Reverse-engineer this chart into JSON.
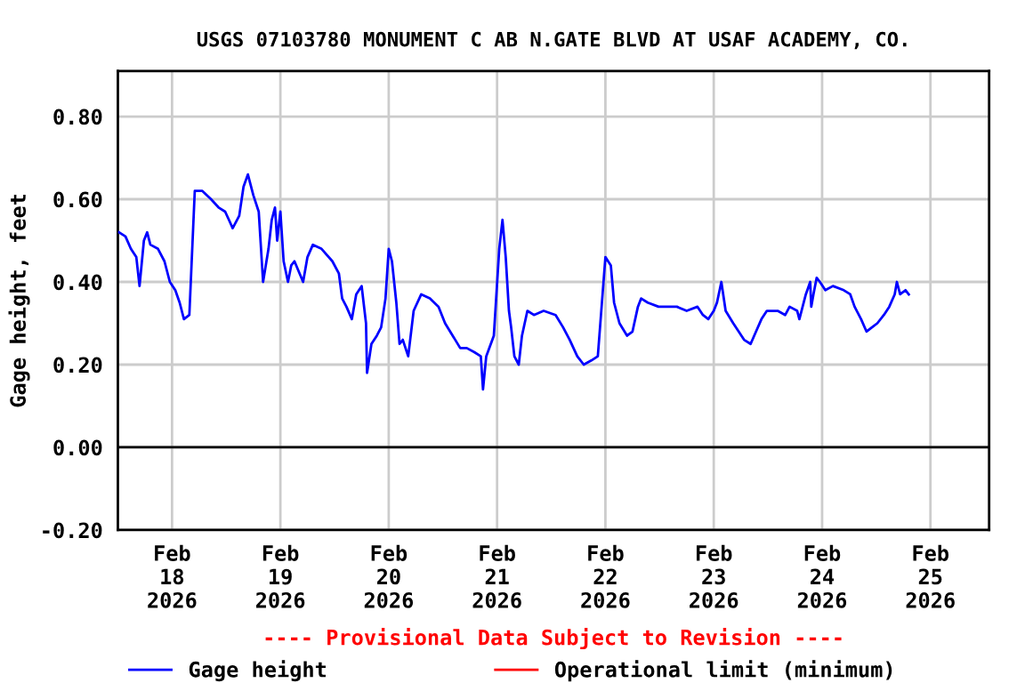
{
  "chart_data": {
    "type": "line",
    "title": "USGS 07103780 MONUMENT C AB N.GATE BLVD AT USAF ACADEMY, CO.",
    "ylabel": "Gage height, feet",
    "xlim": [
      "2026-02-17T12:00",
      "2026-02-25T13:00"
    ],
    "ylim": [
      -0.2,
      0.91
    ],
    "xticks": [
      {
        "value": "2026-02-18",
        "label": "Feb\n18\n2026"
      },
      {
        "value": "2026-02-19",
        "label": "Feb\n19\n2026"
      },
      {
        "value": "2026-02-20",
        "label": "Feb\n20\n2026"
      },
      {
        "value": "2026-02-21",
        "label": "Feb\n21\n2026"
      },
      {
        "value": "2026-02-22",
        "label": "Feb\n22\n2026"
      },
      {
        "value": "2026-02-23",
        "label": "Feb\n23\n2026"
      },
      {
        "value": "2026-02-24",
        "label": "Feb\n24\n2026"
      },
      {
        "value": "2026-02-25",
        "label": "Feb\n25\n2026"
      }
    ],
    "yticks": [
      {
        "value": -0.2,
        "label": "-0.20"
      },
      {
        "value": 0,
        "label": "0.00"
      },
      {
        "value": 0.2,
        "label": "0.20"
      },
      {
        "value": 0.4,
        "label": "0.40"
      },
      {
        "value": 0.6,
        "label": "0.60"
      },
      {
        "value": 0.8,
        "label": "0.80"
      }
    ],
    "grid": true,
    "legend": "bottom",
    "line_style": "solid",
    "marker": "none",
    "ref_lines": [
      {
        "axis": "y",
        "value": 0,
        "color": "#000000"
      }
    ],
    "annotations": [
      "---- Provisional Data Subject to Revision ----"
    ],
    "series": [
      {
        "name": "Gage height",
        "color": "#0000ff",
        "x": [
          "2026-02-17T12:14",
          "2026-02-17T13:41",
          "2026-02-17T14:53",
          "2026-02-17T16:05",
          "2026-02-17T16:48",
          "2026-02-17T17:46",
          "2026-02-17T18:29",
          "2026-02-17T19:12",
          "2026-02-17T20:53",
          "2026-02-17T22:19",
          "2026-02-17T23:31",
          "2026-02-18T00:43",
          "2026-02-18T01:41",
          "2026-02-18T02:38",
          "2026-02-18T03:50",
          "2026-02-18T05:02",
          "2026-02-18T06:43",
          "2026-02-18T08:38",
          "2026-02-18T10:19",
          "2026-02-18T11:46",
          "2026-02-18T13:26",
          "2026-02-18T14:53",
          "2026-02-18T15:50",
          "2026-02-18T16:48",
          "2026-02-18T18:00",
          "2026-02-18T19:12",
          "2026-02-18T20:10",
          "2026-02-18T21:22",
          "2026-02-18T22:05",
          "2026-02-18T22:48",
          "2026-02-18T23:17",
          "2026-02-19T00:00",
          "2026-02-19T00:43",
          "2026-02-19T01:41",
          "2026-02-19T02:24",
          "2026-02-19T03:07",
          "2026-02-19T05:02",
          "2026-02-19T06:00",
          "2026-02-19T07:12",
          "2026-02-19T09:07",
          "2026-02-19T11:31",
          "2026-02-19T12:58",
          "2026-02-19T13:41",
          "2026-02-19T14:38",
          "2026-02-19T15:50",
          "2026-02-19T16:48",
          "2026-02-19T18:00",
          "2026-02-19T18:58",
          "2026-02-19T19:12",
          "2026-02-19T20:10",
          "2026-02-19T21:22",
          "2026-02-19T22:19",
          "2026-02-19T23:17",
          "2026-02-20T00:00",
          "2026-02-20T00:43",
          "2026-02-20T01:41",
          "2026-02-20T02:24",
          "2026-02-20T03:07",
          "2026-02-20T04:19",
          "2026-02-20T05:31",
          "2026-02-20T07:12",
          "2026-02-20T09:07",
          "2026-02-20T11:02",
          "2026-02-20T12:29",
          "2026-02-20T14:10",
          "2026-02-20T15:50",
          "2026-02-20T17:17",
          "2026-02-20T18:58",
          "2026-02-20T20:24",
          "2026-02-20T20:53",
          "2026-02-20T21:36",
          "2026-02-20T23:17",
          "2026-02-21T00:29",
          "2026-02-21T01:12",
          "2026-02-21T01:55",
          "2026-02-21T02:38",
          "2026-02-21T03:07",
          "2026-02-21T03:50",
          "2026-02-21T04:48",
          "2026-02-21T05:31",
          "2026-02-21T06:43",
          "2026-02-21T08:10",
          "2026-02-21T10:19",
          "2026-02-21T12:58",
          "2026-02-21T14:38",
          "2026-02-21T16:05",
          "2026-02-21T17:46",
          "2026-02-21T19:12",
          "2026-02-21T20:53",
          "2026-02-21T22:19",
          "2026-02-22T00:00",
          "2026-02-22T01:12",
          "2026-02-22T01:55",
          "2026-02-22T03:07",
          "2026-02-22T04:48",
          "2026-02-22T06:00",
          "2026-02-22T07:12",
          "2026-02-22T07:55",
          "2026-02-22T09:22",
          "2026-02-22T11:46",
          "2026-02-22T15:50",
          "2026-02-22T18:00",
          "2026-02-22T20:24",
          "2026-02-22T21:36",
          "2026-02-22T22:48",
          "2026-02-23T00:00",
          "2026-02-23T00:43",
          "2026-02-23T01:41",
          "2026-02-23T02:38",
          "2026-02-23T04:19",
          "2026-02-23T05:31",
          "2026-02-23T06:43",
          "2026-02-23T08:10",
          "2026-02-23T09:22",
          "2026-02-23T10:34",
          "2026-02-23T11:46",
          "2026-02-23T14:10",
          "2026-02-23T15:50",
          "2026-02-23T16:48",
          "2026-02-23T18:29",
          "2026-02-23T18:58",
          "2026-02-23T19:41",
          "2026-02-23T20:24",
          "2026-02-23T21:22",
          "2026-02-23T21:36",
          "2026-02-23T22:05",
          "2026-02-23T22:48",
          "2026-02-23T23:31",
          "2026-02-24T00:43",
          "2026-02-24T02:24",
          "2026-02-24T04:48",
          "2026-02-24T06:14",
          "2026-02-24T07:12",
          "2026-02-24T08:38",
          "2026-02-24T09:50",
          "2026-02-24T11:02",
          "2026-02-24T12:14",
          "2026-02-24T13:41",
          "2026-02-24T14:53",
          "2026-02-24T16:05",
          "2026-02-24T16:34",
          "2026-02-24T17:17",
          "2026-02-24T18:29",
          "2026-02-24T19:12"
        ],
        "values": [
          0.52,
          0.51,
          0.48,
          0.46,
          0.39,
          0.5,
          0.52,
          0.49,
          0.48,
          0.45,
          0.4,
          0.38,
          0.35,
          0.31,
          0.32,
          0.62,
          0.62,
          0.6,
          0.58,
          0.57,
          0.53,
          0.56,
          0.63,
          0.66,
          0.61,
          0.57,
          0.4,
          0.48,
          0.55,
          0.58,
          0.5,
          0.57,
          0.45,
          0.4,
          0.44,
          0.45,
          0.4,
          0.46,
          0.49,
          0.48,
          0.45,
          0.42,
          0.36,
          0.34,
          0.31,
          0.37,
          0.39,
          0.3,
          0.18,
          0.25,
          0.27,
          0.29,
          0.36,
          0.48,
          0.45,
          0.35,
          0.25,
          0.26,
          0.22,
          0.33,
          0.37,
          0.36,
          0.34,
          0.3,
          0.27,
          0.24,
          0.24,
          0.23,
          0.22,
          0.14,
          0.22,
          0.27,
          0.48,
          0.55,
          0.46,
          0.33,
          0.29,
          0.22,
          0.2,
          0.27,
          0.33,
          0.32,
          0.33,
          0.32,
          0.29,
          0.26,
          0.22,
          0.2,
          0.21,
          0.22,
          0.46,
          0.44,
          0.35,
          0.3,
          0.27,
          0.28,
          0.34,
          0.36,
          0.35,
          0.34,
          0.34,
          0.33,
          0.34,
          0.32,
          0.31,
          0.33,
          0.35,
          0.4,
          0.33,
          0.3,
          0.28,
          0.26,
          0.25,
          0.28,
          0.31,
          0.33,
          0.33,
          0.32,
          0.34,
          0.33,
          0.31,
          0.34,
          0.37,
          0.4,
          0.34,
          0.37,
          0.41,
          0.4,
          0.38,
          0.39,
          0.38,
          0.37,
          0.34,
          0.31,
          0.28,
          0.29,
          0.3,
          0.32,
          0.34,
          0.37,
          0.4,
          0.37,
          0.38,
          0.37
        ]
      },
      {
        "name": "Operational limit (minimum)",
        "color": "#ff0000"
      }
    ]
  }
}
